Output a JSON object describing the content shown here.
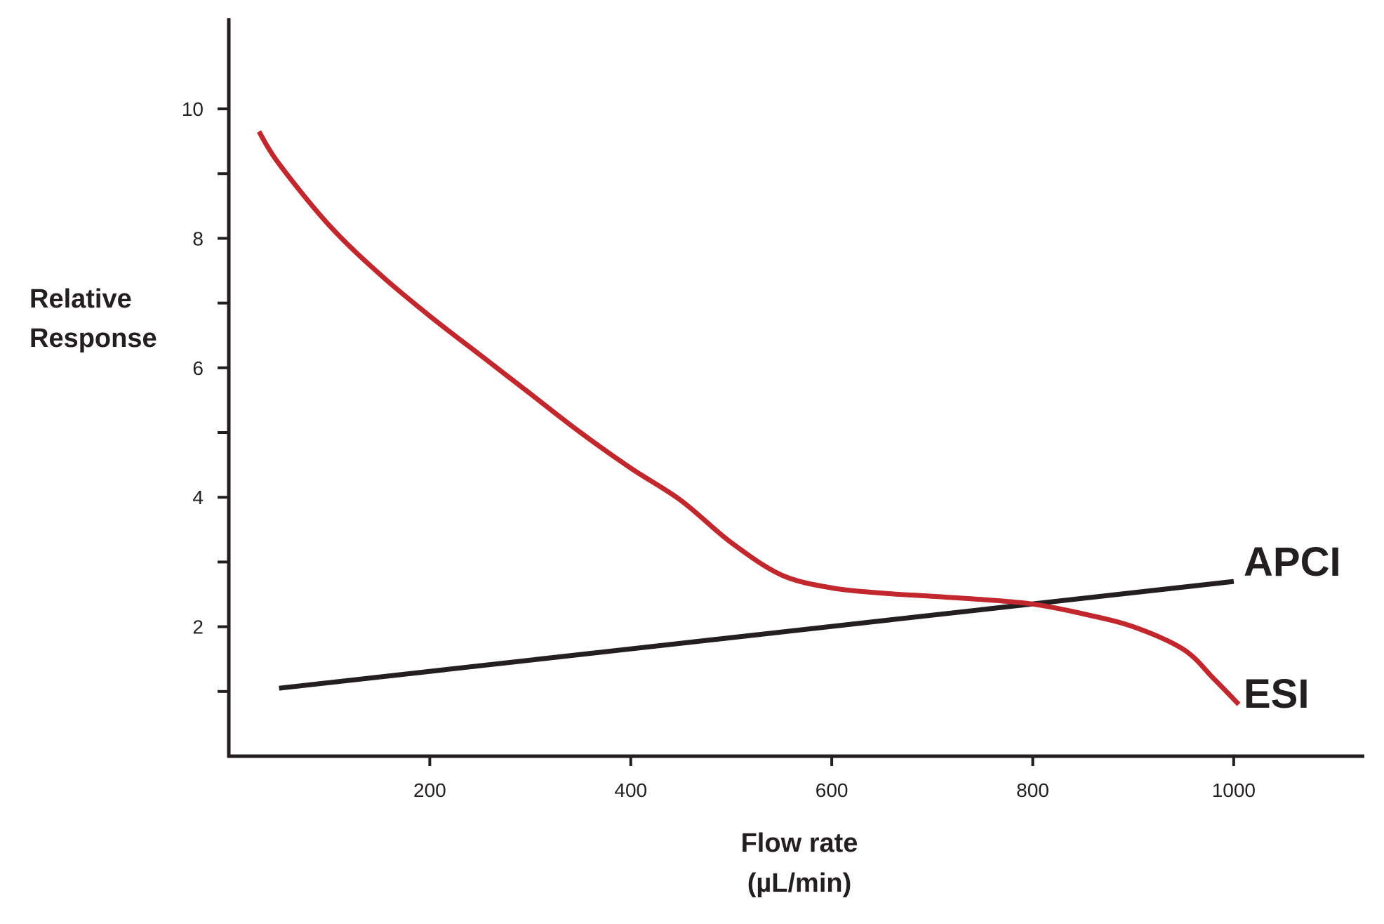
{
  "chart_data": {
    "type": "line",
    "xlabel_lines": [
      "Flow rate",
      "(µL/min)"
    ],
    "ylabel_lines": [
      "Relative",
      "Response"
    ],
    "xlim": [
      0,
      1130
    ],
    "ylim": [
      0,
      11.4
    ],
    "xticks": [
      200,
      400,
      600,
      800,
      1000
    ],
    "xtick_labels": [
      "200",
      "400",
      "600",
      "800",
      "1000"
    ],
    "yticks": [
      2,
      4,
      6,
      8,
      10
    ],
    "ytick_labels": [
      "2",
      "4",
      "6",
      "8",
      "10"
    ],
    "yminor_ticks": [
      1,
      3,
      5,
      7,
      9
    ],
    "grid": false,
    "legend": "none",
    "series": [
      {
        "name": "APCI",
        "color": "#231f20",
        "x": [
          50,
          1000
        ],
        "y": [
          1.05,
          2.7
        ]
      },
      {
        "name": "ESI",
        "color": "#c1272d",
        "x": [
          30,
          50,
          100,
          150,
          200,
          250,
          300,
          350,
          400,
          450,
          500,
          550,
          600,
          650,
          700,
          750,
          800,
          850,
          900,
          950,
          980,
          1005
        ],
        "y": [
          9.65,
          9.15,
          8.2,
          7.45,
          6.8,
          6.2,
          5.6,
          5.0,
          4.45,
          3.95,
          3.3,
          2.8,
          2.6,
          2.52,
          2.47,
          2.42,
          2.35,
          2.2,
          2.0,
          1.65,
          1.2,
          0.8
        ]
      }
    ]
  }
}
